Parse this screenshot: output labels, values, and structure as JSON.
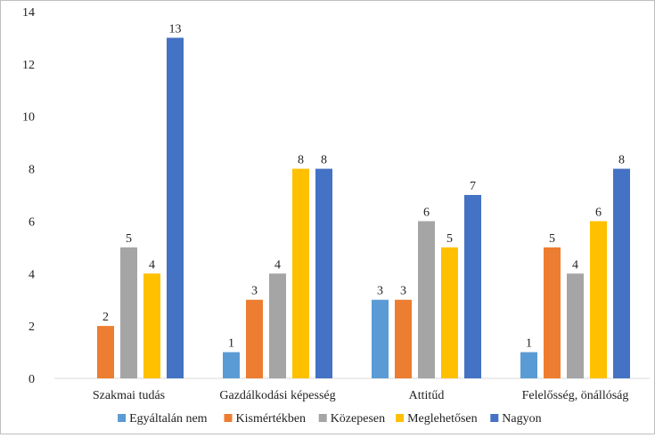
{
  "chart_data": {
    "type": "bar",
    "categories": [
      "Szakmai tudás",
      "Gazdálkodási képesség",
      "Attitűd",
      "Felelősség, önállóság"
    ],
    "series": [
      {
        "name": "Egyáltalán nem",
        "color": "#5b9bd5",
        "values": [
          0,
          1,
          3,
          1
        ]
      },
      {
        "name": "Kismértékben",
        "color": "#ed7d31",
        "values": [
          2,
          3,
          3,
          5
        ]
      },
      {
        "name": "Közepesen",
        "color": "#a5a5a5",
        "values": [
          5,
          4,
          6,
          4
        ]
      },
      {
        "name": "Meglehetősen",
        "color": "#ffc000",
        "values": [
          4,
          8,
          5,
          6
        ]
      },
      {
        "name": "Nagyon",
        "color": "#4472c4",
        "values": [
          13,
          8,
          7,
          8
        ]
      }
    ],
    "ylim": [
      0,
      14
    ],
    "yticks": [
      0,
      2,
      4,
      6,
      8,
      10,
      12,
      14
    ],
    "grid": false,
    "legend": "bottom",
    "data_labels": true
  }
}
